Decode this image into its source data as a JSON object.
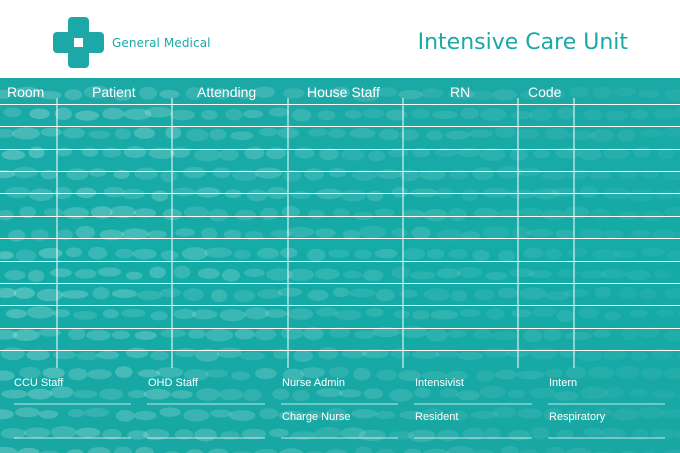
{
  "brand": {
    "name": "General Medical",
    "logo": "medical-cross-icon"
  },
  "board": {
    "title": "Intensive Care Unit",
    "columns": [
      "Room",
      "Patient",
      "Attending",
      "House Staff",
      "RN",
      "Code"
    ],
    "row_count": 12
  },
  "staff": {
    "labels": [
      "CCU Staff",
      "OHD Staff",
      "Nurse Admin",
      "Intensivist",
      "Intern",
      "Charge Nurse",
      "Resident",
      "Respiratory"
    ]
  },
  "colors": {
    "accent": "#1ba8a7",
    "board": "#17a9a6",
    "line": "#ffffff"
  }
}
